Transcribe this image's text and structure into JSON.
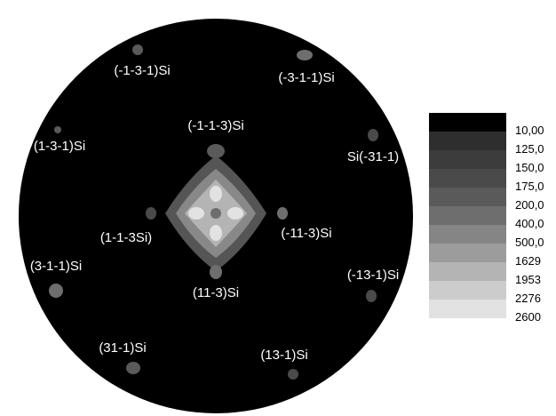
{
  "pole_labels": [
    "(-1-3-1)Si",
    "(-3-1-1)Si",
    "(-1-1-3)Si",
    "(1-3-1)Si",
    "Si(-31-1)",
    "(1-1-3Si)",
    "(-11-3)Si",
    "(3-1-1)Si",
    "(-13-1)Si",
    "(11-3)Si",
    "(31-1)Si",
    "(13-1)Si"
  ],
  "scale": {
    "labels": [
      "10,00",
      "125,0",
      "150,0",
      "175,0",
      "200,0",
      "400,0",
      "500,0",
      "1629",
      "1953",
      "2276",
      "2600"
    ],
    "colors": [
      "#000000",
      "#2e2e2e",
      "#3c3c3c",
      "#4a4a4a",
      "#5a5a5a",
      "#6e6e6e",
      "#858585",
      "#9c9c9c",
      "#b4b4b4",
      "#cccccc",
      "#e2e2e2"
    ]
  }
}
